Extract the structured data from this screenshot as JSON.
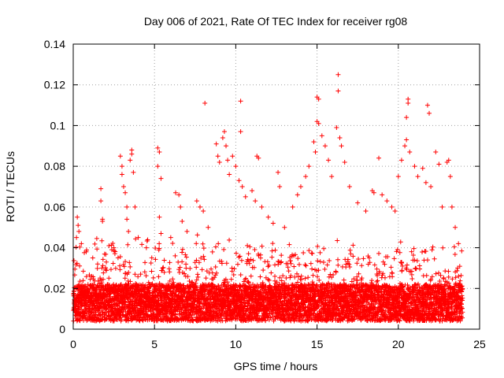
{
  "chart_data": {
    "type": "scatter",
    "title": "Day 006 of 2021, Rate Of TEC Index for receiver rg08",
    "xlabel": "GPS time / hours",
    "ylabel": "ROTI / TECUs",
    "xlim": [
      0,
      25
    ],
    "ylim": [
      0,
      0.14
    ],
    "xticks": [
      "0",
      "5",
      "10",
      "15",
      "20",
      "25"
    ],
    "yticks": [
      "0",
      "0.02",
      "0.04",
      "0.06",
      "0.08",
      "0.1",
      "0.12",
      "0.14"
    ],
    "grid": true,
    "marker": "+",
    "color": "#ff0000",
    "series": [
      {
        "points": [
          [
            0.2,
            0.045
          ],
          [
            0.25,
            0.055
          ],
          [
            0.3,
            0.051
          ],
          [
            0.35,
            0.048
          ],
          [
            0.5,
            0.042
          ],
          [
            0.8,
            0.038
          ],
          [
            1.2,
            0.035
          ],
          [
            1.5,
            0.032
          ],
          [
            1.7,
            0.069
          ],
          [
            1.7,
            0.063
          ],
          [
            1.8,
            0.054
          ],
          [
            1.8,
            0.053
          ],
          [
            2.2,
            0.041
          ],
          [
            2.5,
            0.04
          ],
          [
            2.9,
            0.085
          ],
          [
            3.0,
            0.08
          ],
          [
            3.0,
            0.076
          ],
          [
            3.1,
            0.07
          ],
          [
            3.2,
            0.067
          ],
          [
            3.3,
            0.06
          ],
          [
            3.3,
            0.054
          ],
          [
            3.4,
            0.048
          ],
          [
            3.5,
            0.083
          ],
          [
            3.6,
            0.088
          ],
          [
            3.6,
            0.086
          ],
          [
            3.7,
            0.077
          ],
          [
            3.8,
            0.06
          ],
          [
            4.0,
            0.045
          ],
          [
            4.5,
            0.04
          ],
          [
            5.2,
            0.089
          ],
          [
            5.3,
            0.087
          ],
          [
            5.2,
            0.08
          ],
          [
            5.4,
            0.074
          ],
          [
            5.3,
            0.055
          ],
          [
            5.4,
            0.047
          ],
          [
            6.0,
            0.045
          ],
          [
            6.3,
            0.067
          ],
          [
            6.5,
            0.066
          ],
          [
            6.6,
            0.06
          ],
          [
            6.7,
            0.053
          ],
          [
            7.0,
            0.048
          ],
          [
            7.6,
            0.063
          ],
          [
            7.8,
            0.06
          ],
          [
            8.1,
            0.111
          ],
          [
            8.0,
            0.058
          ],
          [
            8.3,
            0.05
          ],
          [
            8.8,
            0.091
          ],
          [
            8.9,
            0.085
          ],
          [
            9.0,
            0.082
          ],
          [
            9.2,
            0.094
          ],
          [
            9.3,
            0.097
          ],
          [
            9.4,
            0.09
          ],
          [
            9.5,
            0.083
          ],
          [
            9.6,
            0.076
          ],
          [
            9.8,
            0.085
          ],
          [
            10.0,
            0.08
          ],
          [
            10.2,
            0.073
          ],
          [
            10.3,
            0.112
          ],
          [
            10.3,
            0.097
          ],
          [
            10.4,
            0.07
          ],
          [
            10.6,
            0.065
          ],
          [
            11.0,
            0.068
          ],
          [
            11.2,
            0.063
          ],
          [
            11.3,
            0.085
          ],
          [
            11.4,
            0.084
          ],
          [
            11.6,
            0.06
          ],
          [
            12.0,
            0.055
          ],
          [
            12.3,
            0.052
          ],
          [
            12.6,
            0.077
          ],
          [
            12.7,
            0.07
          ],
          [
            13.0,
            0.05
          ],
          [
            13.5,
            0.06
          ],
          [
            13.8,
            0.066
          ],
          [
            14.0,
            0.07
          ],
          [
            14.3,
            0.075
          ],
          [
            14.5,
            0.08
          ],
          [
            14.8,
            0.092
          ],
          [
            14.9,
            0.087
          ],
          [
            15.0,
            0.114
          ],
          [
            15.1,
            0.113
          ],
          [
            15.0,
            0.102
          ],
          [
            15.1,
            0.101
          ],
          [
            15.3,
            0.095
          ],
          [
            15.5,
            0.09
          ],
          [
            15.7,
            0.083
          ],
          [
            15.9,
            0.075
          ],
          [
            16.2,
            0.099
          ],
          [
            16.3,
            0.125
          ],
          [
            16.3,
            0.117
          ],
          [
            16.4,
            0.094
          ],
          [
            16.5,
            0.09
          ],
          [
            16.7,
            0.082
          ],
          [
            17.0,
            0.07
          ],
          [
            17.5,
            0.062
          ],
          [
            18.0,
            0.058
          ],
          [
            18.4,
            0.068
          ],
          [
            18.5,
            0.067
          ],
          [
            18.8,
            0.084
          ],
          [
            19.0,
            0.066
          ],
          [
            19.3,
            0.063
          ],
          [
            19.6,
            0.06
          ],
          [
            19.8,
            0.058
          ],
          [
            20.0,
            0.075
          ],
          [
            20.2,
            0.083
          ],
          [
            20.4,
            0.09
          ],
          [
            20.5,
            0.104
          ],
          [
            20.6,
            0.111
          ],
          [
            20.6,
            0.113
          ],
          [
            20.5,
            0.093
          ],
          [
            20.7,
            0.087
          ],
          [
            21.0,
            0.08
          ],
          [
            21.2,
            0.075
          ],
          [
            21.5,
            0.079
          ],
          [
            21.7,
            0.072
          ],
          [
            21.8,
            0.11
          ],
          [
            21.9,
            0.106
          ],
          [
            22.0,
            0.07
          ],
          [
            22.3,
            0.087
          ],
          [
            22.5,
            0.081
          ],
          [
            22.7,
            0.06
          ],
          [
            23.0,
            0.082
          ],
          [
            23.1,
            0.083
          ],
          [
            23.2,
            0.075
          ],
          [
            23.3,
            0.06
          ],
          [
            23.5,
            0.05
          ],
          [
            23.7,
            0.042
          ]
        ]
      }
    ]
  }
}
